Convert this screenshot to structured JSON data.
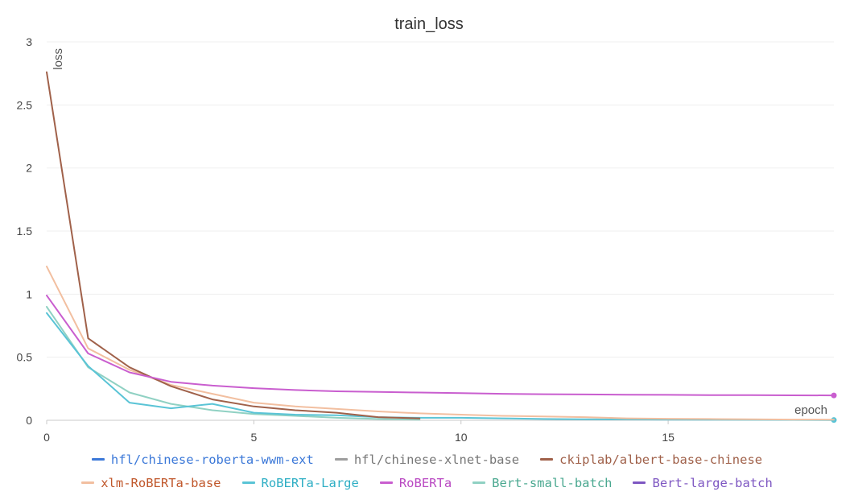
{
  "chart_data": {
    "type": "line",
    "title": "train_loss",
    "xlabel": "epoch",
    "ylabel": "loss",
    "xlim": [
      0,
      19
    ],
    "ylim": [
      0,
      3
    ],
    "xticks": [
      "0",
      "5",
      "10",
      "15"
    ],
    "yticks": [
      "0",
      "0.5",
      "1",
      "1.5",
      "2",
      "2.5",
      "3"
    ],
    "grid": true,
    "legend_position": "bottom",
    "series": [
      {
        "name": "hfl/chinese-roberta-wwm-ext",
        "color": "#3b78d8",
        "label_color": "#3b78d8",
        "width": 2,
        "marker": false,
        "x": [],
        "y": []
      },
      {
        "name": "hfl/chinese-xlnet-base",
        "color": "#9e9e9e",
        "label_color": "#777777",
        "width": 2,
        "marker": false,
        "x": [],
        "y": []
      },
      {
        "name": "ckiplab/albert-base-chinese",
        "color": "#a0614a",
        "label_color": "#a0614a",
        "width": 2,
        "marker": false,
        "x": [
          0,
          1,
          2,
          3,
          4,
          5,
          6,
          7,
          8,
          9
        ],
        "y": [
          2.76,
          0.65,
          0.42,
          0.27,
          0.165,
          0.11,
          0.08,
          0.06,
          0.025,
          0.015
        ]
      },
      {
        "name": "xlm-RoBERTa-base",
        "color": "#f2bfa0",
        "label_color": "#c0572b",
        "width": 2,
        "marker": false,
        "x": [
          0,
          1,
          2,
          3,
          4,
          5,
          6,
          7,
          8,
          9,
          10,
          11,
          12,
          13,
          14,
          15,
          16,
          17,
          18,
          19
        ],
        "y": [
          1.22,
          0.57,
          0.4,
          0.28,
          0.21,
          0.14,
          0.11,
          0.09,
          0.07,
          0.055,
          0.045,
          0.035,
          0.03,
          0.025,
          0.015,
          0.012,
          0.01,
          0.008,
          0.006,
          0.005
        ]
      },
      {
        "name": "RoBERTa-Large",
        "color": "#5ac4d6",
        "label_color": "#2eaec4",
        "width": 2,
        "marker": true,
        "x": [
          0,
          1,
          2,
          3,
          4,
          5,
          6,
          7,
          8,
          9,
          10,
          11,
          12,
          13,
          14,
          15,
          16,
          17,
          18,
          19
        ],
        "y": [
          0.85,
          0.43,
          0.14,
          0.095,
          0.13,
          0.06,
          0.045,
          0.04,
          0.025,
          0.02,
          0.02,
          0.015,
          0.01,
          0.008,
          0.007,
          0.006,
          0.005,
          0.004,
          0.003,
          0.002
        ]
      },
      {
        "name": "RoBERTa",
        "color": "#c95ecf",
        "label_color": "#b948c2",
        "width": 2,
        "marker": true,
        "x": [
          0,
          1,
          2,
          3,
          4,
          5,
          6,
          7,
          8,
          9,
          10,
          11,
          12,
          13,
          14,
          15,
          16,
          17,
          18,
          19
        ],
        "y": [
          0.99,
          0.53,
          0.38,
          0.305,
          0.275,
          0.255,
          0.24,
          0.23,
          0.225,
          0.22,
          0.215,
          0.21,
          0.207,
          0.205,
          0.203,
          0.202,
          0.2,
          0.199,
          0.198,
          0.197
        ]
      },
      {
        "name": "Bert-small-batch",
        "color": "#90d1c3",
        "label_color": "#4aa890",
        "width": 2,
        "marker": false,
        "x": [
          0,
          1,
          2,
          3,
          4,
          5,
          6,
          7,
          8,
          9
        ],
        "y": [
          0.9,
          0.42,
          0.22,
          0.13,
          0.08,
          0.05,
          0.035,
          0.02,
          0.01,
          0.005
        ]
      },
      {
        "name": "Bert-large-batch",
        "color": "#7e57c2",
        "label_color": "#7e57c2",
        "width": 2,
        "marker": false,
        "x": [],
        "y": []
      }
    ]
  }
}
